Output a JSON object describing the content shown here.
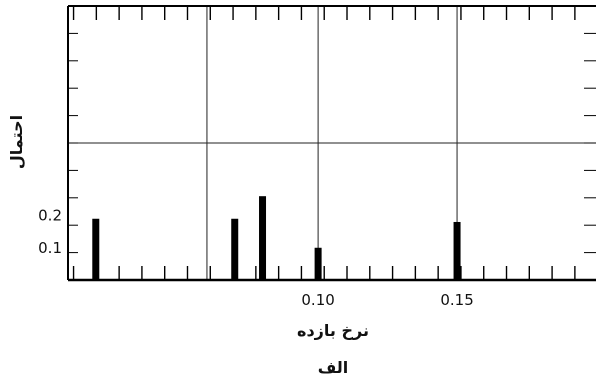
{
  "chart_data": {
    "type": "bar",
    "title": "",
    "caption": "الف",
    "xlabel": "نرخ بازده",
    "ylabel": "احتمال",
    "x": [
      0.02,
      0.07,
      0.08,
      0.1,
      0.15
    ],
    "values": [
      0.19,
      0.19,
      0.26,
      0.1,
      0.18
    ],
    "xlim": [
      0.01,
      0.2
    ],
    "ylim": [
      0,
      0.85
    ],
    "x_tick_labels": [
      {
        "value": 0.1,
        "label": "0.10"
      },
      {
        "value": 0.15,
        "label": "0.15"
      }
    ],
    "y_tick_labels": [
      {
        "value": 0.1,
        "label": "0.1"
      },
      {
        "value": 0.2,
        "label": "0.2"
      }
    ],
    "grid": true,
    "color": "#000000"
  }
}
